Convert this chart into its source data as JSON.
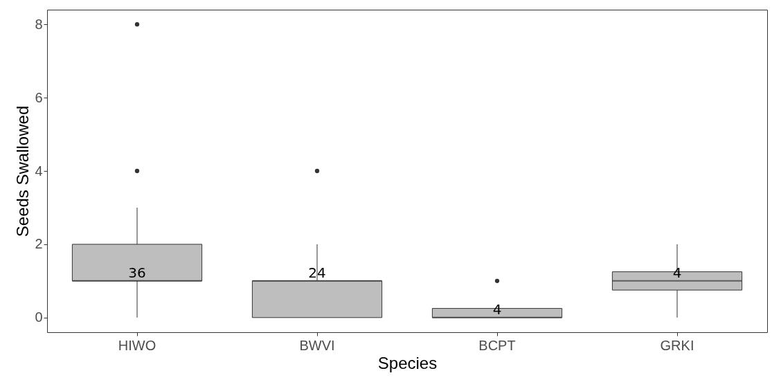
{
  "chart_data": {
    "type": "box",
    "xlabel": "Species",
    "ylabel": "Seeds Swallowed",
    "categories": [
      "HIWO",
      "BWVI",
      "BCPT",
      "GRKI"
    ],
    "boxes": [
      {
        "low": 0,
        "q1": 1,
        "median": 1,
        "q3": 2,
        "high": 3,
        "outliers": [
          4,
          8
        ]
      },
      {
        "low": 0,
        "q1": 0,
        "median": 1,
        "q3": 1,
        "high": 2,
        "outliers": [
          4
        ]
      },
      {
        "low": 0,
        "q1": 0,
        "median": 0,
        "q3": 0.25,
        "high": 0.25,
        "outliers": [
          1
        ]
      },
      {
        "low": 0,
        "q1": 0.75,
        "median": 1,
        "q3": 1.25,
        "high": 2
      }
    ],
    "color": "#bebebe",
    "ylim": [
      -0.4,
      8.4
    ],
    "yticks": [
      0,
      2,
      4,
      6,
      8
    ],
    "annotations": [
      {
        "text": "36",
        "x": "HIWO",
        "y": 1
      },
      {
        "text": "24",
        "x": "BWVI",
        "y": 1
      },
      {
        "text": "4",
        "x": "BCPT",
        "y": 0
      },
      {
        "text": "4",
        "x": "GRKI",
        "y": 1
      }
    ]
  }
}
